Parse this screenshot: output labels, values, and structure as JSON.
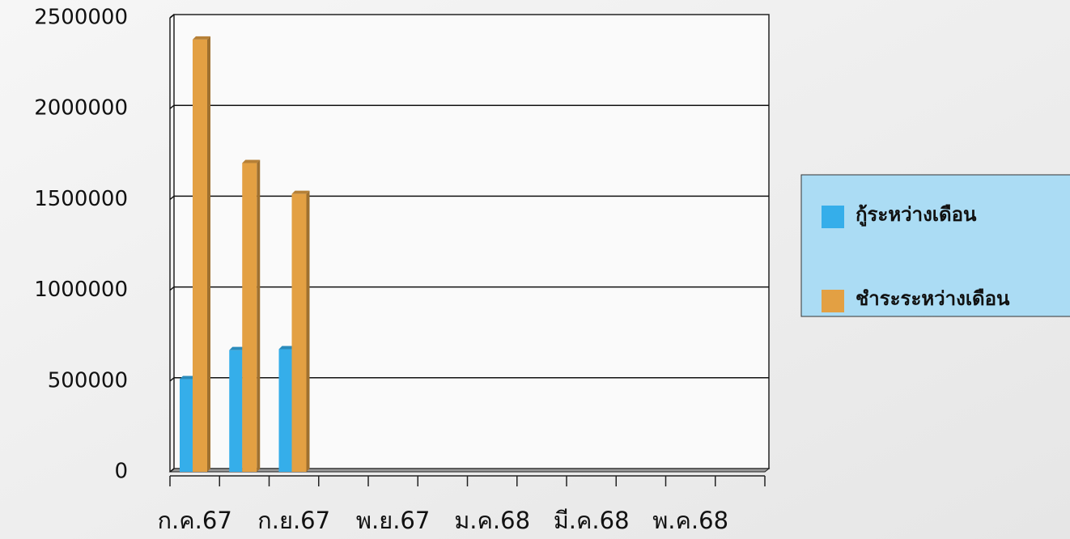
{
  "chart_data": {
    "type": "bar",
    "categories": [
      "ก.ค.67",
      null,
      "ก.ย.67",
      null,
      "พ.ย.67",
      null,
      "ม.ค.68",
      null,
      "มี.ค.68",
      null,
      "พ.ค.68",
      null
    ],
    "series": [
      {
        "name": "กู้ระหว่างเดือน",
        "color": "#35aeea",
        "values": [
          510000,
          670000,
          675000,
          null,
          null,
          null,
          null,
          null,
          null,
          null,
          null,
          null
        ]
      },
      {
        "name": "ชำระระหว่างเดือน",
        "color": "#e3a043",
        "values": [
          2380000,
          1700000,
          1530000,
          null,
          null,
          null,
          null,
          null,
          null,
          null,
          null,
          null
        ]
      }
    ],
    "ylim": [
      0,
      2500000
    ],
    "yticks": [
      0,
      500000,
      1000000,
      1500000,
      2000000,
      2500000
    ],
    "grid": true,
    "legend": "right"
  }
}
